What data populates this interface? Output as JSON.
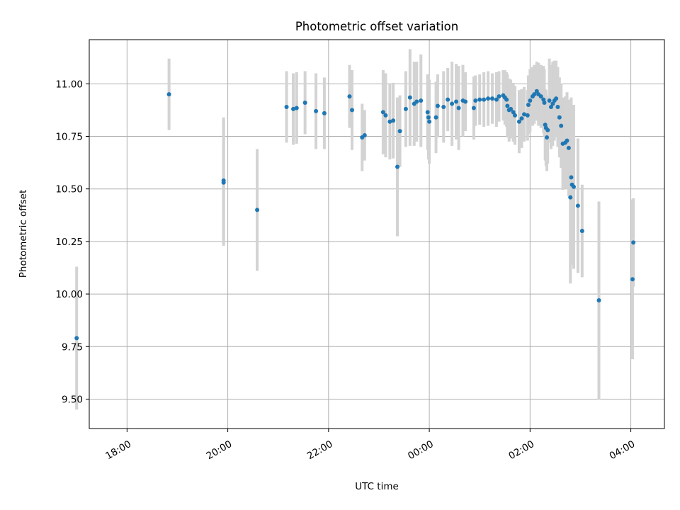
{
  "chart_data": {
    "type": "scatter",
    "title": "Photometric offset variation",
    "xlabel": "UTC time",
    "ylabel": "Photometric offset",
    "x_axis": "time",
    "xlim": [
      "17:15",
      "04:40"
    ],
    "ylim": [
      9.36,
      11.21
    ],
    "x_ticks": [
      "18:00",
      "20:00",
      "22:00",
      "00:00",
      "02:00",
      "04:00"
    ],
    "y_ticks": [
      9.5,
      9.75,
      10.0,
      10.25,
      10.5,
      10.75,
      11.0
    ],
    "grid": true,
    "colors": {
      "points": "#1f77b4",
      "error_bars": "#d3d3d3",
      "grid": "#b0b0b0"
    },
    "series": [
      {
        "x": [
          "17:00",
          "18:50",
          "19:55",
          "19:55",
          "20:35",
          "21:10",
          "21:18",
          "21:22",
          "21:32",
          "21:45",
          "21:55",
          "22:25",
          "22:28",
          "22:40",
          "22:43",
          "23:05",
          "23:08",
          "23:13",
          "23:17",
          "23:22",
          "23:25",
          "23:32",
          "23:37",
          "23:42",
          "23:45",
          "23:50",
          "23:58",
          "23:59",
          "00:00",
          "00:08",
          "00:10",
          "00:17",
          "00:22",
          "00:27",
          "00:32",
          "00:35",
          "00:40",
          "00:43",
          "00:53",
          "00:55",
          "01:00",
          "01:05",
          "01:10",
          "01:15",
          "01:20",
          "01:23",
          "01:28",
          "01:30",
          "01:32",
          "01:33",
          "01:35",
          "01:37",
          "01:40",
          "01:42",
          "01:47",
          "01:50",
          "01:53",
          "01:57",
          "01:58",
          "02:00",
          "02:03",
          "02:05",
          "02:08",
          "02:10",
          "02:13",
          "02:16",
          "02:17",
          "02:18",
          "02:19",
          "02:20",
          "02:21",
          "02:23",
          "02:25",
          "02:27",
          "02:29",
          "02:31",
          "02:33",
          "02:35",
          "02:37",
          "02:39",
          "02:42",
          "02:44",
          "02:46",
          "02:48",
          "02:49",
          "02:50",
          "02:52",
          "02:57",
          "03:02",
          "03:22",
          "04:02",
          "04:03"
        ],
        "y": [
          9.79,
          10.95,
          10.53,
          10.54,
          10.4,
          10.89,
          10.88,
          10.885,
          10.91,
          10.87,
          10.86,
          10.94,
          10.875,
          10.745,
          10.755,
          10.865,
          10.85,
          10.82,
          10.825,
          10.605,
          10.775,
          10.88,
          10.935,
          10.905,
          10.915,
          10.92,
          10.865,
          10.84,
          10.82,
          10.84,
          10.895,
          10.89,
          10.925,
          10.905,
          10.915,
          10.885,
          10.92,
          10.915,
          10.885,
          10.92,
          10.925,
          10.925,
          10.93,
          10.93,
          10.925,
          10.94,
          10.945,
          10.935,
          10.925,
          10.895,
          10.875,
          10.88,
          10.865,
          10.85,
          10.82,
          10.835,
          10.855,
          10.85,
          10.9,
          10.92,
          10.94,
          10.95,
          10.965,
          10.95,
          10.94,
          10.925,
          10.91,
          10.805,
          10.79,
          10.745,
          10.78,
          10.92,
          10.89,
          10.905,
          10.92,
          10.93,
          10.89,
          10.84,
          10.8,
          10.715,
          10.72,
          10.73,
          10.695,
          10.46,
          10.555,
          10.52,
          10.51,
          10.42,
          10.3,
          9.97,
          10.07,
          10.245
        ],
        "err": [
          0.34,
          0.17,
          0.3,
          0.3,
          0.29,
          0.17,
          0.17,
          0.17,
          0.15,
          0.18,
          0.17,
          0.15,
          0.19,
          0.16,
          0.12,
          0.2,
          0.2,
          0.18,
          0.18,
          0.33,
          0.17,
          0.18,
          0.23,
          0.2,
          0.19,
          0.22,
          0.18,
          0.2,
          0.2,
          0.17,
          0.15,
          0.17,
          0.15,
          0.2,
          0.18,
          0.2,
          0.17,
          0.14,
          0.15,
          0.12,
          0.12,
          0.13,
          0.13,
          0.12,
          0.13,
          0.12,
          0.12,
          0.13,
          0.13,
          0.15,
          0.15,
          0.14,
          0.14,
          0.14,
          0.15,
          0.14,
          0.13,
          0.12,
          0.14,
          0.15,
          0.14,
          0.14,
          0.14,
          0.15,
          0.15,
          0.16,
          0.16,
          0.17,
          0.18,
          0.16,
          0.16,
          0.2,
          0.2,
          0.2,
          0.19,
          0.18,
          0.19,
          0.19,
          0.2,
          0.22,
          0.22,
          0.23,
          0.23,
          0.41,
          0.38,
          0.38,
          0.39,
          0.32,
          0.22,
          0.47,
          0.38,
          0.21
        ]
      }
    ]
  }
}
